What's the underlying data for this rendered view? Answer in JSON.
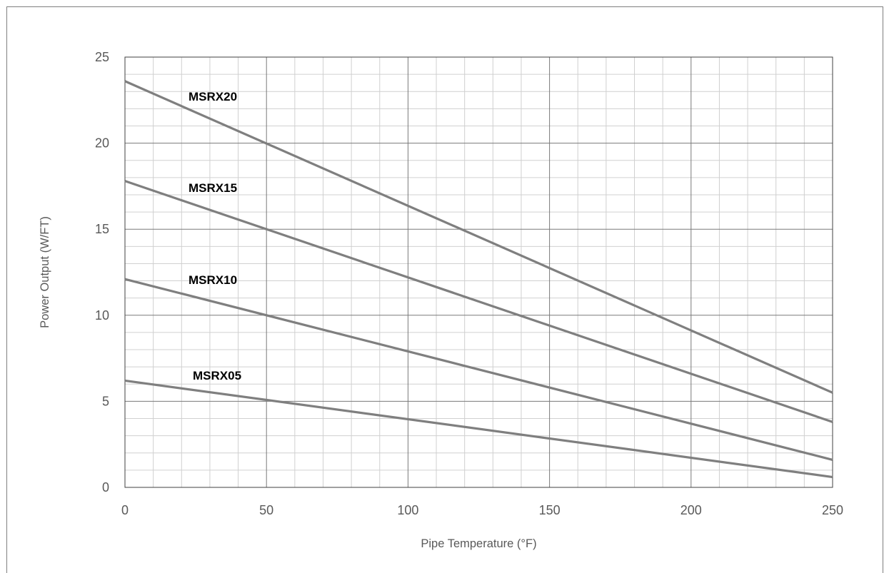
{
  "chart_data": {
    "type": "line",
    "title": "",
    "xlabel": "Pipe Temperature (°F)",
    "ylabel": "Power Output (W/FT)",
    "xlim": [
      0,
      250
    ],
    "ylim": [
      0,
      25
    ],
    "xticks": [
      0,
      50,
      100,
      150,
      200,
      250
    ],
    "yticks": [
      0,
      5,
      10,
      15,
      20,
      25
    ],
    "minor_x_step": 10,
    "minor_y_step": 1,
    "grid": true,
    "legend": "inline labels",
    "line_color": "#7f7f7f",
    "series": [
      {
        "name": "MSRX20",
        "x": [
          0,
          250
        ],
        "y": [
          23.6,
          5.5
        ]
      },
      {
        "name": "MSRX15",
        "x": [
          0,
          250
        ],
        "y": [
          17.8,
          3.8
        ]
      },
      {
        "name": "MSRX10",
        "x": [
          0,
          250
        ],
        "y": [
          12.1,
          1.6
        ]
      },
      {
        "name": "MSRX05",
        "x": [
          0,
          250
        ],
        "y": [
          6.2,
          0.6
        ]
      }
    ]
  }
}
